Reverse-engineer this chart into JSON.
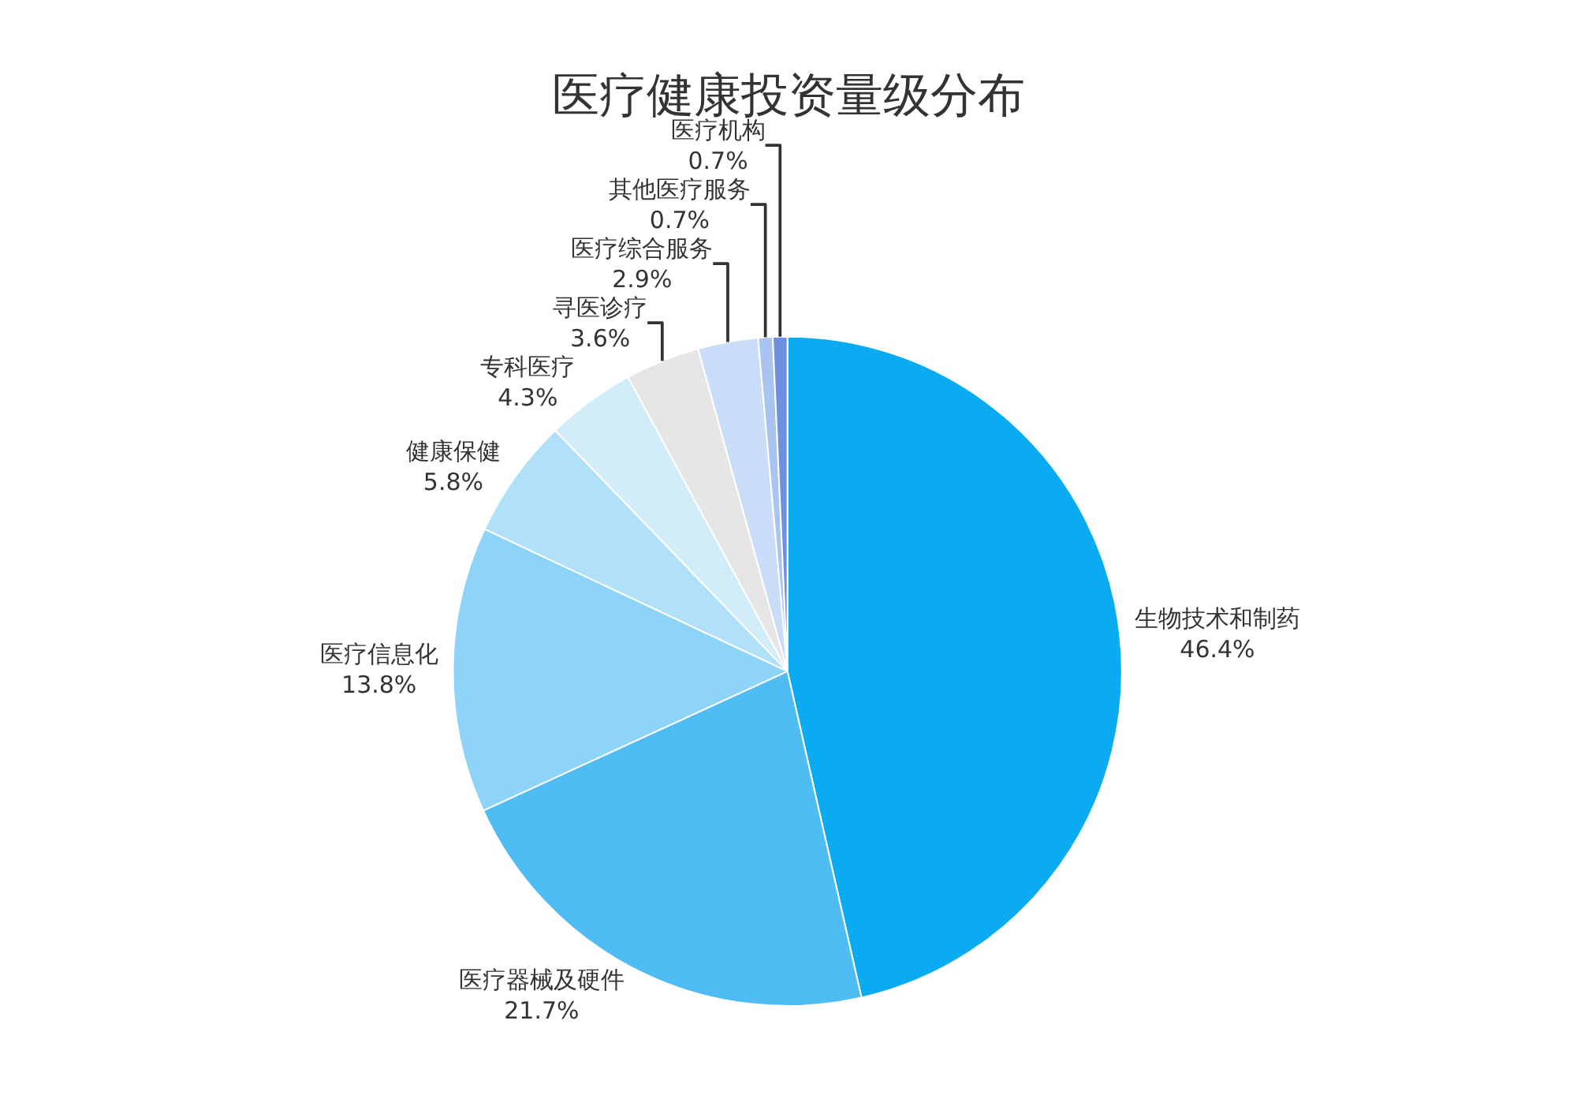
{
  "chart_data": {
    "type": "pie",
    "title": "医疗健康投资量级分布",
    "categories": [
      "生物技术和制药",
      "医疗器械及硬件",
      "医疗信息化",
      "健康保健",
      "专科医疗",
      "寻医诊疗",
      "医疗综合服务",
      "其他医疗服务",
      "医疗机构"
    ],
    "values": [
      46.4,
      21.7,
      13.8,
      5.8,
      4.3,
      3.6,
      2.9,
      0.7,
      0.7
    ],
    "value_labels": [
      "46.4%",
      "21.7%",
      "13.8%",
      "5.8%",
      "4.3%",
      "3.6%",
      "2.9%",
      "0.7%",
      "0.7%"
    ],
    "colors": [
      "#0aabf0",
      "#4fbdf4",
      "#8dd4f8",
      "#b0e1f8",
      "#d2edfa",
      "#e6e6e6",
      "#c9dcf8",
      "#a9c4f0",
      "#6f8fe0"
    ],
    "legend": false
  }
}
